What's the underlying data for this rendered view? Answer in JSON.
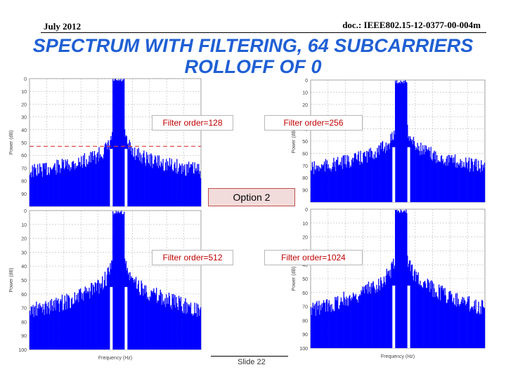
{
  "header": {
    "date": "July 2012",
    "doc_id": "doc.: IEEE802.15-12-0377-00-004m"
  },
  "title": {
    "line1": "SPECTRUM WITH FILTERING, 64 SUBCARRIERS",
    "line2": "ROLLOFF OF 0"
  },
  "option_label": "Option 2",
  "footer": {
    "slide": "Slide 22"
  },
  "colors": {
    "title": "#1f5fd4",
    "spectrum": "#0000ff",
    "label_text": "#c00000",
    "threshold": "#e04040"
  },
  "chart_data": [
    {
      "type": "area",
      "filter_label": "Filter order=128",
      "ylim": [
        -100,
        0
      ],
      "threshold_db": -53,
      "yticks": [
        "0",
        "10",
        "20",
        "30",
        "40",
        "50",
        "60",
        "70",
        "80",
        "90"
      ],
      "ylabel": "Power (dB)",
      "main_lobe_db": 0,
      "floor_db": -88
    },
    {
      "type": "area",
      "filter_label": "Filter order=256",
      "ylim": [
        -100,
        0
      ],
      "yticks": [
        "0",
        "10",
        "20",
        "30",
        "40",
        "50",
        "60",
        "70",
        "80",
        "90"
      ],
      "ylabel": "Power (dB)",
      "main_lobe_db": 0,
      "floor_db": -90
    },
    {
      "type": "area",
      "filter_label": "Filter order=512",
      "ylim": [
        -100,
        0
      ],
      "yticks": [
        "0",
        "10",
        "20",
        "30",
        "40",
        "50",
        "60",
        "70",
        "80",
        "90",
        "100"
      ],
      "ylabel": "Power (dB)",
      "xlabel": "Frequency (Hz)",
      "main_lobe_db": 0,
      "floor_db": -92
    },
    {
      "type": "area",
      "filter_label": "Filter order=1024",
      "ylim": [
        -100,
        0
      ],
      "yticks": [
        "0",
        "10",
        "20",
        "30",
        "40",
        "50",
        "60",
        "70",
        "80",
        "90",
        "100"
      ],
      "ylabel": "Power (dB)",
      "xlabel": "Frequency (Hz)",
      "main_lobe_db": 0,
      "floor_db": -94
    }
  ]
}
